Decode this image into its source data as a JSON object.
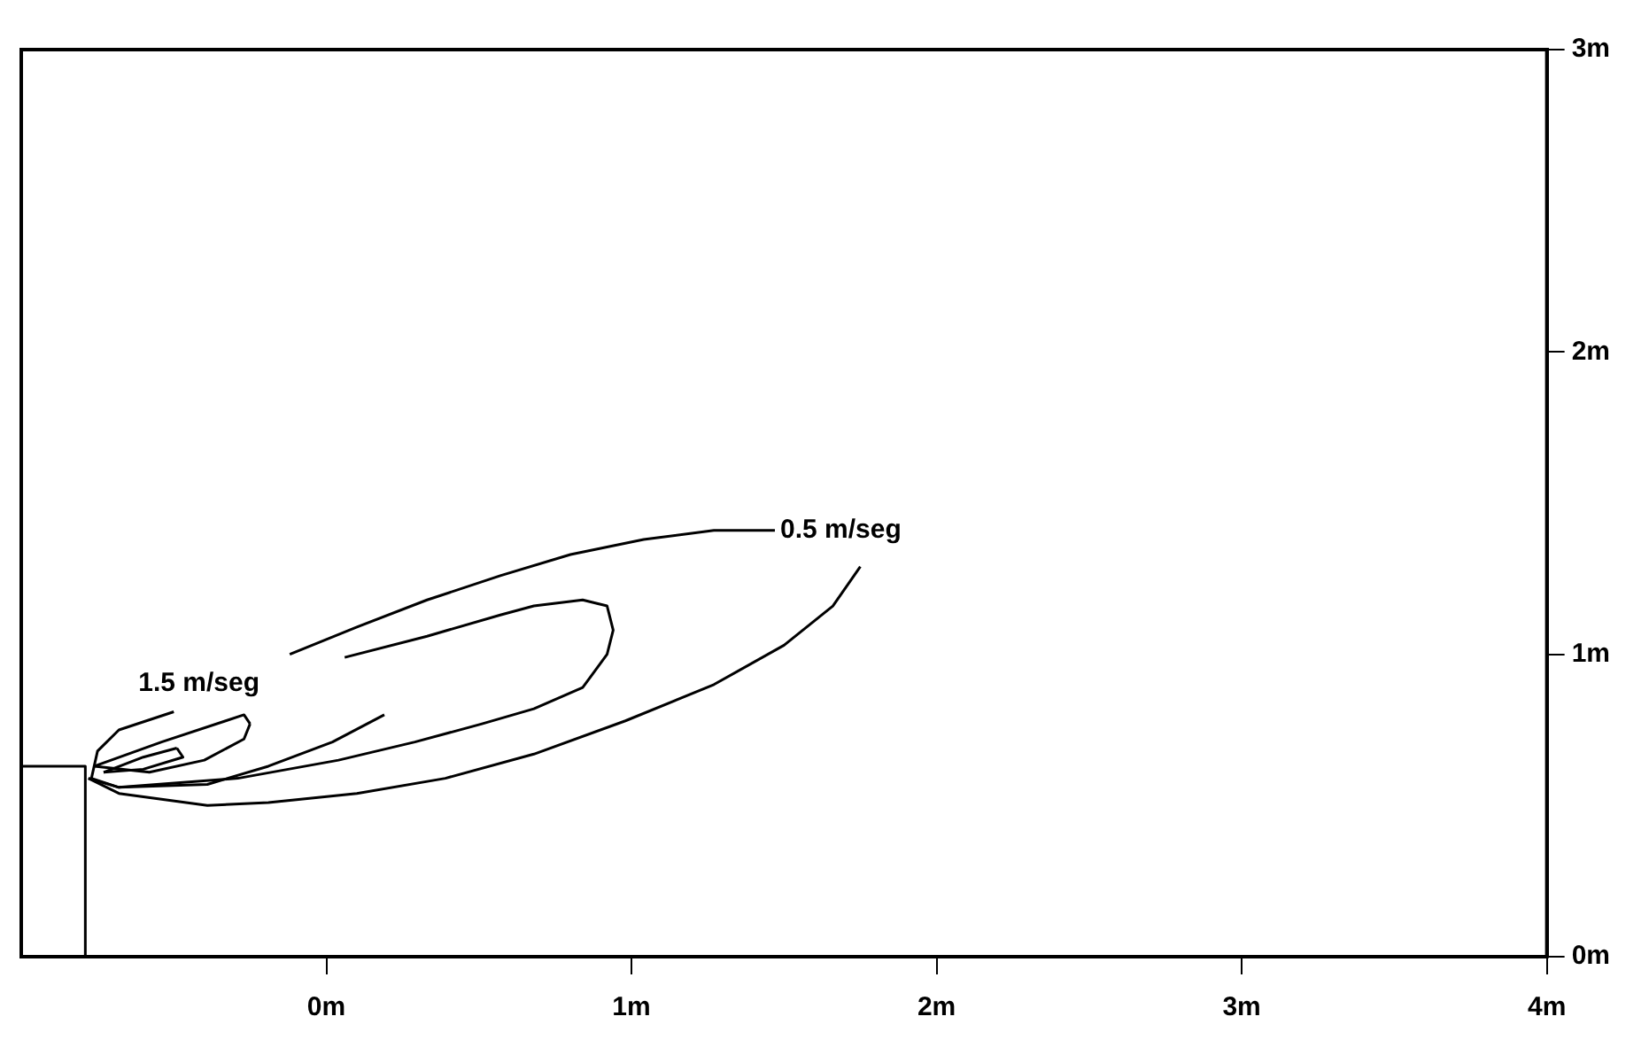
{
  "chart_data": {
    "type": "line",
    "xlim": [
      -1,
      4
    ],
    "ylim": [
      0,
      3
    ],
    "xticks": [
      {
        "value": 0,
        "label": "0m"
      },
      {
        "value": 1,
        "label": "1m"
      },
      {
        "value": 2,
        "label": "2m"
      },
      {
        "value": 3,
        "label": "3m"
      },
      {
        "value": 4,
        "label": "4m"
      }
    ],
    "yticks": [
      {
        "value": 0,
        "label": "0m"
      },
      {
        "value": 1,
        "label": "1m"
      },
      {
        "value": 2,
        "label": "2m"
      },
      {
        "value": 3,
        "label": "3m"
      }
    ],
    "grid": false,
    "legend": false,
    "marker": "none",
    "line_style": "solid",
    "series": [
      {
        "name": "0.5 m/seg",
        "color": "#000000",
        "x": [
          -0.12,
          0.1,
          0.33,
          0.57,
          0.8,
          1.04,
          1.27,
          1.47,
          1.6,
          1.75,
          1.66,
          1.5,
          1.27,
          0.98,
          0.68,
          0.39,
          0.1,
          -0.19,
          -0.39,
          -0.68,
          -0.78
        ],
        "values": [
          1.0,
          1.09,
          1.18,
          1.26,
          1.33,
          1.38,
          1.41,
          1.41,
          null,
          1.29,
          1.16,
          1.03,
          0.9,
          0.78,
          0.67,
          0.59,
          0.54,
          0.51,
          0.5,
          0.54,
          0.59
        ]
      },
      {
        "color": "#000000",
        "x": [
          0.06,
          0.33,
          0.57,
          0.68,
          0.84,
          0.92,
          0.94,
          0.92,
          0.84,
          0.68,
          0.51,
          0.29,
          0.04,
          -0.29,
          -0.68,
          -0.78
        ],
        "values": [
          0.99,
          1.06,
          1.13,
          1.16,
          1.18,
          1.16,
          1.08,
          1.0,
          0.89,
          0.82,
          0.77,
          0.71,
          0.65,
          0.59,
          0.56,
          0.59
        ]
      },
      {
        "name": "1.5 m/seg",
        "color": "#000000",
        "x": [
          0.19,
          0.02,
          -0.19,
          -0.39,
          -0.68,
          -0.77,
          -0.75,
          -0.68,
          -0.5
        ],
        "values": [
          0.8,
          0.71,
          0.63,
          0.57,
          0.56,
          0.59,
          0.68,
          0.75,
          0.81
        ]
      },
      {
        "color": "#000000",
        "x": [
          -0.76,
          -0.54,
          -0.33,
          -0.27,
          -0.25
        ],
        "values": [
          0.63,
          0.71,
          0.78,
          0.8,
          0.77
        ]
      },
      {
        "color": "#000000",
        "x": [
          -0.76,
          -0.58,
          -0.4,
          -0.27,
          -0.25
        ],
        "values": [
          0.63,
          0.61,
          0.65,
          0.72,
          0.77
        ]
      },
      {
        "color": "#000000",
        "x": [
          -0.73,
          -0.6,
          -0.49
        ],
        "values": [
          0.61,
          0.66,
          0.69
        ]
      },
      {
        "color": "#000000",
        "x": [
          -0.73,
          -0.6,
          -0.47,
          -0.49
        ],
        "values": [
          0.61,
          0.62,
          0.66,
          0.69
        ]
      },
      {
        "color": "#000000",
        "x": [
          -1,
          -0.79,
          -0.79
        ],
        "values": [
          0.63,
          0.63,
          0
        ]
      }
    ]
  }
}
